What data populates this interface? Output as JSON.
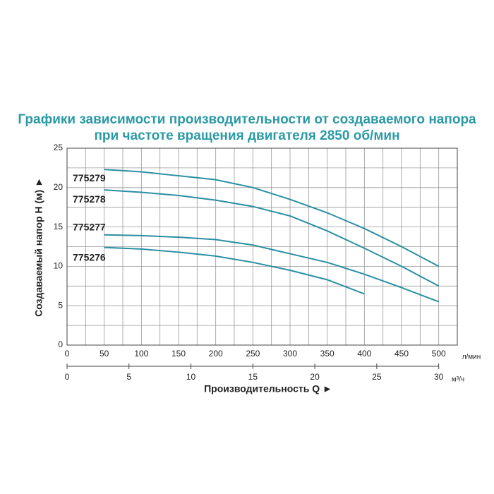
{
  "chart_data": {
    "type": "line",
    "title": [
      "Графики зависимости производительности от создаваемого напора",
      "при частоте вращения двигателя 2850 об/мин"
    ],
    "y_label": "Создаваемый напор H (м) ►",
    "x_label": "Производительность Q ►",
    "x_unit": "л/мин",
    "x2_unit": "м³/ч",
    "x": [
      50,
      100,
      150,
      200,
      250,
      300,
      350,
      400,
      450,
      500
    ],
    "series": [
      {
        "name": "775279",
        "color": "#2a8fa3",
        "values": [
          22.3,
          22.0,
          21.5,
          21.0,
          20.0,
          18.5,
          16.8,
          14.8,
          12.5,
          10.0
        ]
      },
      {
        "name": "775278",
        "color": "#2a8fa3",
        "values": [
          19.7,
          19.4,
          19.0,
          18.4,
          17.6,
          16.4,
          14.5,
          12.3,
          10.0,
          7.5
        ]
      },
      {
        "name": "775277",
        "color": "#2a8fa3",
        "values": [
          14.0,
          13.9,
          13.7,
          13.4,
          12.7,
          11.6,
          10.5,
          9.0,
          7.3,
          5.5
        ]
      },
      {
        "name": "775276",
        "color": "#2a8fa3",
        "values": [
          12.4,
          12.2,
          11.8,
          11.3,
          10.5,
          9.5,
          8.3,
          6.5,
          null,
          null
        ]
      }
    ],
    "xlim": [
      0,
      525
    ],
    "xticks": [
      0,
      50,
      100,
      150,
      200,
      250,
      300,
      350,
      400,
      450,
      500
    ],
    "x2lim": [
      0,
      31.5
    ],
    "x2ticks": [
      0,
      5,
      10,
      15,
      20,
      25,
      30
    ],
    "ylim": [
      0,
      25
    ],
    "yticks": [
      0,
      5,
      10,
      15,
      20,
      25
    ],
    "grid": true
  }
}
